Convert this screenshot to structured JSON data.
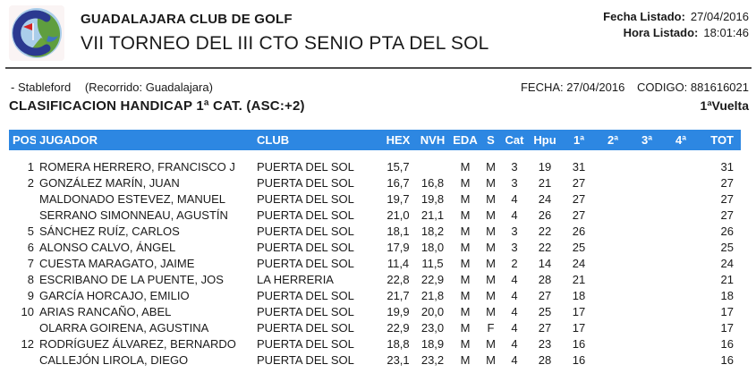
{
  "header": {
    "club_name": "GUADALAJARA CLUB DE GOLF",
    "tournament_title": "VII TORNEO DEL III CTO SENIO PTA DEL SOL",
    "fecha_listado_label": "Fecha Listado:",
    "fecha_listado_value": "27/04/2016",
    "hora_listado_label": "Hora Listado:",
    "hora_listado_value": "18:01:46"
  },
  "info": {
    "format": "- Stableford",
    "course": "(Recorrido: Guadalajara)",
    "fecha_label": "FECHA:",
    "fecha_value": "27/04/2016",
    "codigo_label": "CODIGO:",
    "codigo_value": "881616021"
  },
  "classification": {
    "title": "CLASIFICACION HANDICAP 1ª CAT. (ASC:+2)",
    "round": "1ªVuelta"
  },
  "colors": {
    "header_bar": "#2d87e2",
    "header_bar_text": "#ffffff",
    "logo_blue": "#2b3990",
    "logo_green": "#5f9e3f",
    "logo_sky": "#aacdea",
    "logo_flag_red": "#d42222"
  },
  "table": {
    "columns": [
      "POS",
      "JUGADOR",
      "CLUB",
      "HEX",
      "NVH",
      "EDA",
      "S",
      "Cat",
      "Hpu",
      "1ª",
      "2ª",
      "3ª",
      "4ª",
      "TOT"
    ],
    "rows": [
      [
        "1",
        "ROMERA HERRERO, FRANCISCO J",
        "PUERTA DEL SOL",
        "15,7",
        "",
        "M",
        "M",
        "3",
        "19",
        "31",
        "",
        "",
        "",
        "31"
      ],
      [
        "2",
        "GONZÁLEZ MARÍN, JUAN",
        "PUERTA DEL SOL",
        "16,7",
        "16,8",
        "M",
        "M",
        "3",
        "21",
        "27",
        "",
        "",
        "",
        "27"
      ],
      [
        "",
        "MALDONADO ESTEVEZ, MANUEL",
        "PUERTA DEL SOL",
        "19,7",
        "19,8",
        "M",
        "M",
        "4",
        "24",
        "27",
        "",
        "",
        "",
        "27"
      ],
      [
        "",
        "SERRANO SIMONNEAU, AGUSTÍN",
        "PUERTA DEL SOL",
        "21,0",
        "21,1",
        "M",
        "M",
        "4",
        "26",
        "27",
        "",
        "",
        "",
        "27"
      ],
      [
        "5",
        "SÁNCHEZ RUÍZ, CARLOS",
        "PUERTA DEL SOL",
        "18,1",
        "18,2",
        "M",
        "M",
        "3",
        "22",
        "26",
        "",
        "",
        "",
        "26"
      ],
      [
        "6",
        "ALONSO CALVO, ÁNGEL",
        "PUERTA DEL SOL",
        "17,9",
        "18,0",
        "M",
        "M",
        "3",
        "22",
        "25",
        "",
        "",
        "",
        "25"
      ],
      [
        "7",
        "CUESTA MARAGATO, JAIME",
        "PUERTA DEL SOL",
        "11,4",
        "11,5",
        "M",
        "M",
        "2",
        "14",
        "24",
        "",
        "",
        "",
        "24"
      ],
      [
        "8",
        "ESCRIBANO DE LA PUENTE, JOS",
        "LA HERRERIA",
        "22,8",
        "22,9",
        "M",
        "M",
        "4",
        "28",
        "21",
        "",
        "",
        "",
        "21"
      ],
      [
        "9",
        "GARCÍA HORCAJO, EMILIO",
        "PUERTA DEL SOL",
        "21,7",
        "21,8",
        "M",
        "M",
        "4",
        "27",
        "18",
        "",
        "",
        "",
        "18"
      ],
      [
        "10",
        "ARIAS RANCAÑO, ABEL",
        "PUERTA DEL SOL",
        "19,9",
        "20,0",
        "M",
        "M",
        "4",
        "25",
        "17",
        "",
        "",
        "",
        "17"
      ],
      [
        "",
        "OLARRA GOIRENA, AGUSTINA",
        "PUERTA DEL SOL",
        "22,9",
        "23,0",
        "M",
        "F",
        "4",
        "27",
        "17",
        "",
        "",
        "",
        "17"
      ],
      [
        "12",
        "RODRÍGUEZ ÁLVAREZ, BERNARDO",
        "PUERTA DEL SOL",
        "18,8",
        "18,9",
        "M",
        "M",
        "4",
        "23",
        "16",
        "",
        "",
        "",
        "16"
      ],
      [
        "",
        "CALLEJÓN LIROLA, DIEGO",
        "PUERTA DEL SOL",
        "23,1",
        "23,2",
        "M",
        "M",
        "4",
        "28",
        "16",
        "",
        "",
        "",
        "16"
      ]
    ]
  }
}
